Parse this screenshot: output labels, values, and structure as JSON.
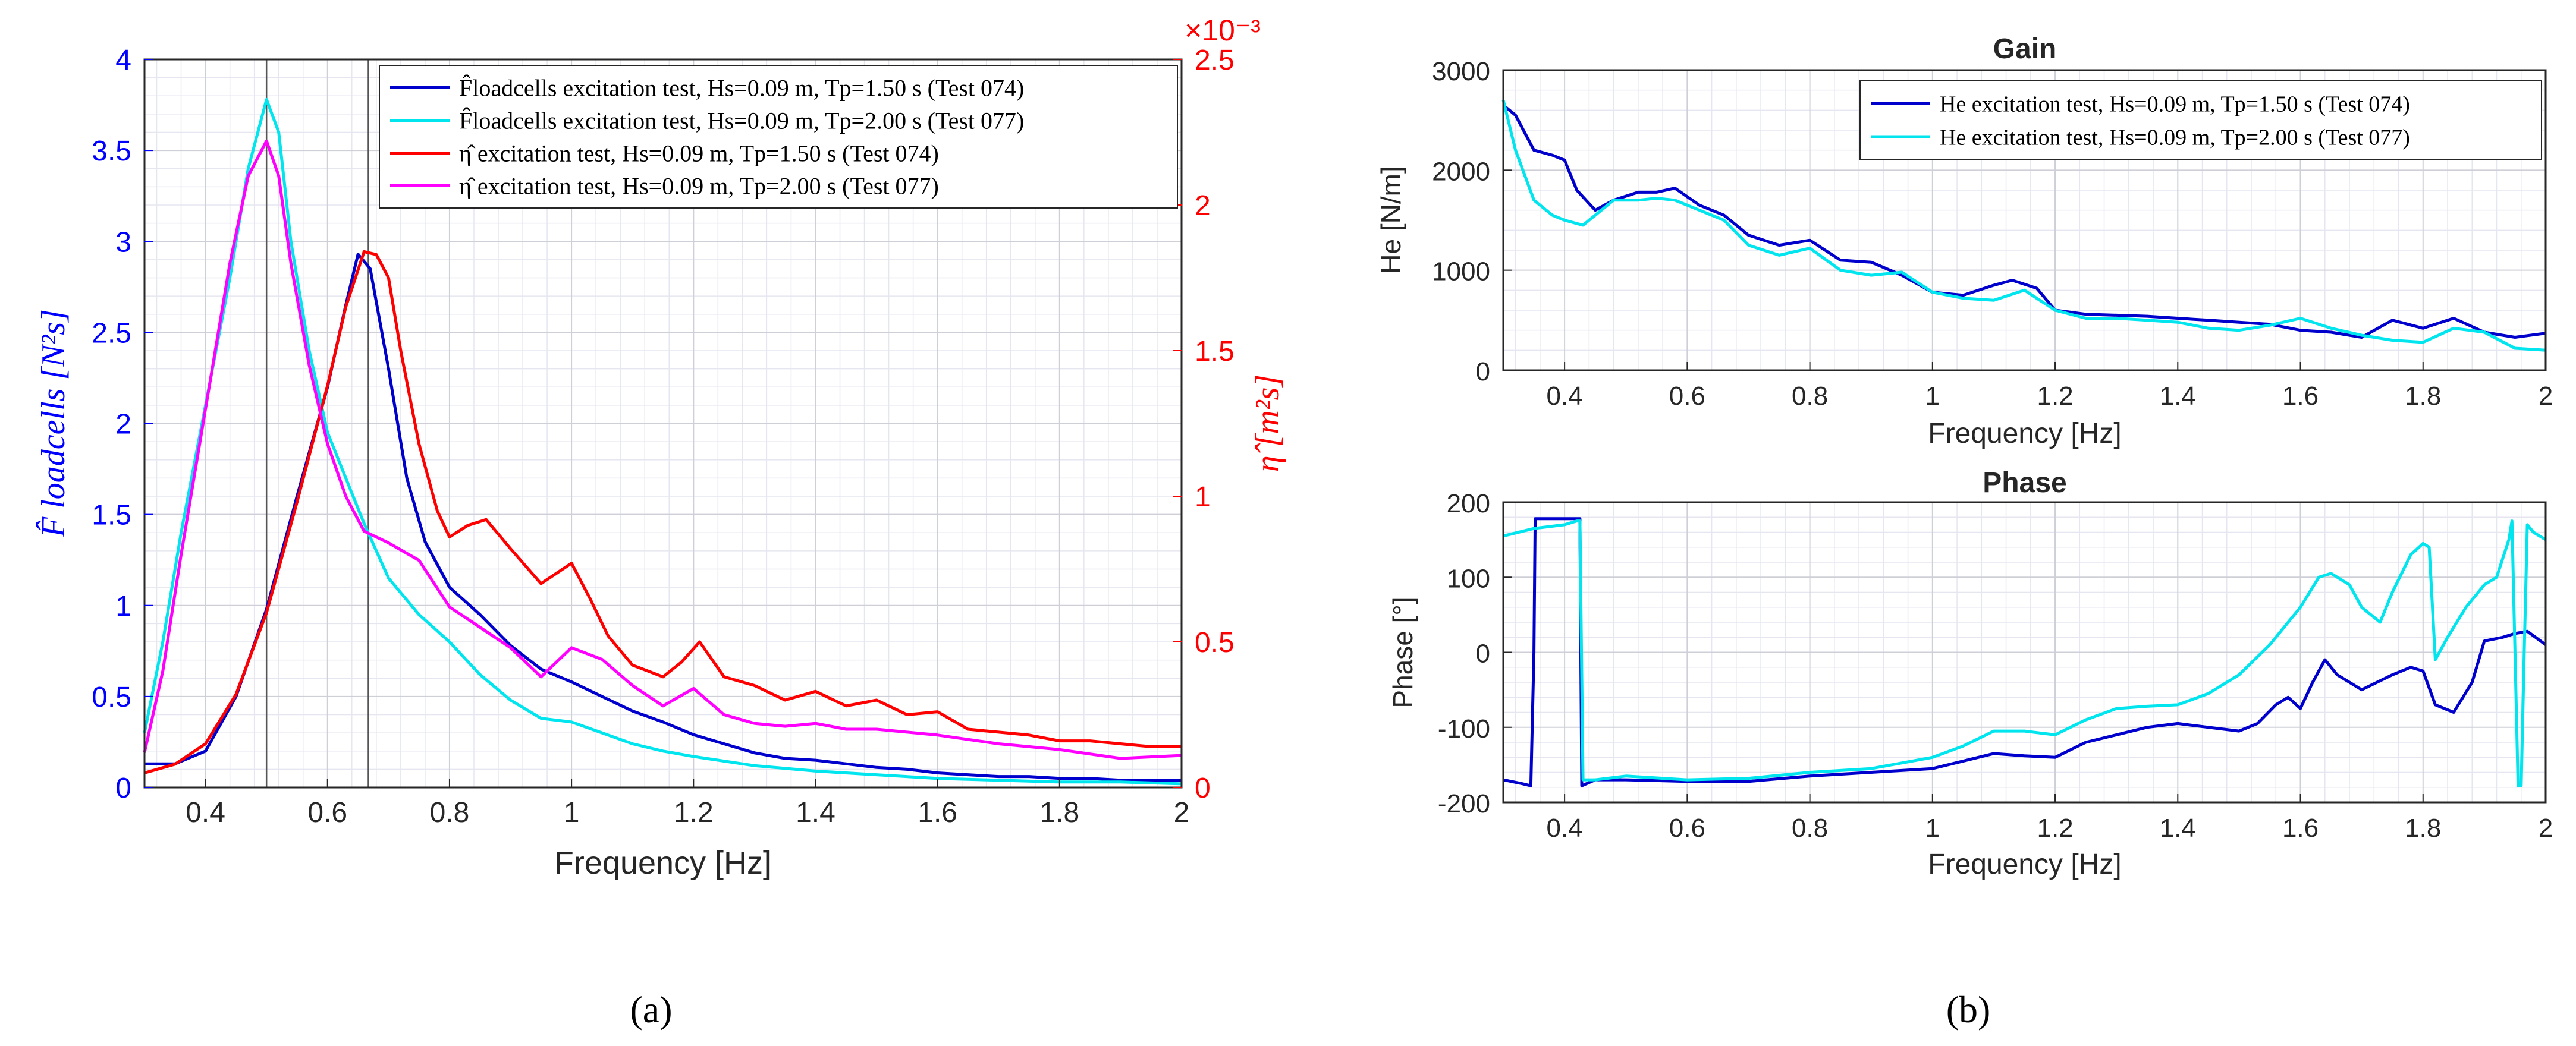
{
  "figure_labels": {
    "a": "(a)",
    "b": "(b)"
  },
  "chart_data": [
    {
      "id": "a",
      "type": "line",
      "title": "",
      "xlabel": "Frequency [Hz]",
      "ylabel_left": "F̂ loadcells [N²s]",
      "ylabel_right": "η̂ [m²s]",
      "xlim": [
        0.3,
        2.0
      ],
      "ylim_left": [
        0,
        4
      ],
      "ylim_right": [
        0,
        2.5
      ],
      "right_axis_exponent": "×10⁻³",
      "grid": true,
      "legend_position": "top-right",
      "x_ticks": [
        "0.4",
        "0.6",
        "0.8",
        "1",
        "1.2",
        "1.4",
        "1.6",
        "1.8",
        "2"
      ],
      "y_left_ticks": [
        "0",
        "0.5",
        "1",
        "1.5",
        "2",
        "2.5",
        "3",
        "3.5",
        "4"
      ],
      "y_right_ticks": [
        "0",
        "0.5",
        "1",
        "1.5",
        "2",
        "2.5"
      ],
      "vertical_lines": [
        0.5,
        0.667
      ],
      "series": [
        {
          "name": "F̂loadcells excitation test, Hs=0.09 m, Tp=1.50 s (Test 074)",
          "color": "#0000cd",
          "axis": "left",
          "x": [
            0.3,
            0.35,
            0.4,
            0.45,
            0.5,
            0.55,
            0.6,
            0.63,
            0.65,
            0.67,
            0.7,
            0.73,
            0.76,
            0.8,
            0.85,
            0.9,
            0.95,
            1.0,
            1.05,
            1.1,
            1.15,
            1.2,
            1.25,
            1.3,
            1.35,
            1.4,
            1.45,
            1.5,
            1.55,
            1.6,
            1.65,
            1.7,
            1.75,
            1.8,
            1.85,
            1.9,
            1.95,
            2.0
          ],
          "y": [
            0.13,
            0.13,
            0.2,
            0.5,
            0.98,
            1.6,
            2.2,
            2.65,
            2.93,
            2.85,
            2.3,
            1.7,
            1.35,
            1.1,
            0.95,
            0.78,
            0.65,
            0.58,
            0.5,
            0.42,
            0.36,
            0.29,
            0.24,
            0.19,
            0.16,
            0.15,
            0.13,
            0.11,
            0.1,
            0.08,
            0.07,
            0.06,
            0.06,
            0.05,
            0.05,
            0.04,
            0.04,
            0.04
          ]
        },
        {
          "name": "F̂loadcells excitation test, Hs=0.09 m, Tp=2.00 s (Test 077)",
          "color": "#00e5ee",
          "axis": "left",
          "x": [
            0.3,
            0.33,
            0.36,
            0.4,
            0.44,
            0.47,
            0.5,
            0.52,
            0.54,
            0.57,
            0.6,
            0.63,
            0.66,
            0.7,
            0.75,
            0.8,
            0.85,
            0.9,
            0.95,
            1.0,
            1.05,
            1.1,
            1.15,
            1.2,
            1.3,
            1.4,
            1.5,
            1.6,
            1.7,
            1.8,
            1.9,
            2.0
          ],
          "y": [
            0.3,
            0.8,
            1.4,
            2.1,
            2.8,
            3.4,
            3.78,
            3.6,
            3.0,
            2.4,
            1.95,
            1.7,
            1.45,
            1.15,
            0.95,
            0.8,
            0.62,
            0.48,
            0.38,
            0.36,
            0.3,
            0.24,
            0.2,
            0.17,
            0.12,
            0.09,
            0.07,
            0.05,
            0.04,
            0.03,
            0.03,
            0.02
          ]
        },
        {
          "name": "η̂ excitation test, Hs=0.09 m, Tp=1.50 s (Test 074)",
          "color": "#ff0000",
          "axis": "right",
          "x": [
            0.3,
            0.35,
            0.4,
            0.45,
            0.5,
            0.55,
            0.6,
            0.63,
            0.66,
            0.68,
            0.7,
            0.72,
            0.75,
            0.78,
            0.8,
            0.83,
            0.86,
            0.9,
            0.95,
            1.0,
            1.03,
            1.06,
            1.1,
            1.15,
            1.18,
            1.21,
            1.25,
            1.3,
            1.35,
            1.4,
            1.45,
            1.5,
            1.55,
            1.6,
            1.65,
            1.7,
            1.75,
            1.8,
            1.85,
            1.9,
            1.95,
            2.0
          ],
          "y": [
            0.05,
            0.08,
            0.15,
            0.32,
            0.6,
            0.98,
            1.38,
            1.65,
            1.84,
            1.83,
            1.75,
            1.5,
            1.18,
            0.95,
            0.86,
            0.9,
            0.92,
            0.82,
            0.7,
            0.77,
            0.65,
            0.52,
            0.42,
            0.38,
            0.43,
            0.5,
            0.38,
            0.35,
            0.3,
            0.33,
            0.28,
            0.3,
            0.25,
            0.26,
            0.2,
            0.19,
            0.18,
            0.16,
            0.16,
            0.15,
            0.14,
            0.14
          ]
        },
        {
          "name": "η̂ excitation test, Hs=0.09 m, Tp=2.00 s (Test 077)",
          "color": "#ff00ff",
          "axis": "right",
          "x": [
            0.3,
            0.33,
            0.36,
            0.4,
            0.44,
            0.47,
            0.5,
            0.52,
            0.54,
            0.57,
            0.6,
            0.63,
            0.66,
            0.7,
            0.75,
            0.8,
            0.85,
            0.9,
            0.95,
            1.0,
            1.05,
            1.1,
            1.15,
            1.2,
            1.25,
            1.3,
            1.35,
            1.4,
            1.45,
            1.5,
            1.6,
            1.7,
            1.8,
            1.9,
            2.0
          ],
          "y": [
            0.12,
            0.4,
            0.8,
            1.3,
            1.8,
            2.1,
            2.22,
            2.1,
            1.8,
            1.45,
            1.18,
            1.0,
            0.88,
            0.84,
            0.78,
            0.62,
            0.55,
            0.48,
            0.38,
            0.48,
            0.44,
            0.35,
            0.28,
            0.34,
            0.25,
            0.22,
            0.21,
            0.22,
            0.2,
            0.2,
            0.18,
            0.15,
            0.13,
            0.1,
            0.11
          ]
        }
      ]
    },
    {
      "id": "b-gain",
      "type": "line",
      "title": "Gain",
      "xlabel": "Frequency [Hz]",
      "ylabel": "He [N/m]",
      "xlim": [
        0.3,
        2.0
      ],
      "ylim": [
        0,
        3000
      ],
      "grid": true,
      "legend_position": "top-right",
      "x_ticks": [
        "0.4",
        "0.6",
        "0.8",
        "1",
        "1.2",
        "1.4",
        "1.6",
        "1.8",
        "2"
      ],
      "y_ticks": [
        "0",
        "1000",
        "2000",
        "3000"
      ],
      "series": [
        {
          "name": "He excitation test, Hs=0.09 m, Tp=1.50 s (Test 074)",
          "color": "#0000cd",
          "x": [
            0.3,
            0.32,
            0.35,
            0.38,
            0.4,
            0.42,
            0.45,
            0.48,
            0.52,
            0.55,
            0.58,
            0.62,
            0.66,
            0.7,
            0.75,
            0.8,
            0.85,
            0.9,
            0.95,
            1.0,
            1.05,
            1.1,
            1.13,
            1.17,
            1.2,
            1.25,
            1.3,
            1.35,
            1.4,
            1.45,
            1.5,
            1.55,
            1.6,
            1.65,
            1.7,
            1.75,
            1.8,
            1.85,
            1.9,
            1.95,
            2.0
          ],
          "y": [
            2650,
            2550,
            2200,
            2150,
            2100,
            1800,
            1600,
            1700,
            1780,
            1780,
            1820,
            1650,
            1550,
            1350,
            1250,
            1300,
            1100,
            1080,
            950,
            780,
            750,
            850,
            900,
            820,
            600,
            560,
            550,
            540,
            520,
            500,
            480,
            460,
            400,
            380,
            330,
            500,
            420,
            520,
            380,
            330,
            370
          ]
        },
        {
          "name": "He excitation test, Hs=0.09 m, Tp=2.00 s (Test 077)",
          "color": "#00e5ee",
          "x": [
            0.3,
            0.32,
            0.35,
            0.38,
            0.4,
            0.43,
            0.45,
            0.48,
            0.52,
            0.55,
            0.58,
            0.62,
            0.66,
            0.7,
            0.75,
            0.8,
            0.85,
            0.9,
            0.95,
            1.0,
            1.05,
            1.1,
            1.15,
            1.2,
            1.25,
            1.3,
            1.35,
            1.4,
            1.45,
            1.5,
            1.55,
            1.6,
            1.65,
            1.7,
            1.75,
            1.8,
            1.85,
            1.9,
            1.95,
            2.0
          ],
          "y": [
            2700,
            2200,
            1700,
            1550,
            1500,
            1450,
            1550,
            1700,
            1700,
            1720,
            1700,
            1600,
            1500,
            1250,
            1150,
            1220,
            1000,
            950,
            980,
            780,
            720,
            700,
            800,
            600,
            520,
            520,
            500,
            480,
            420,
            400,
            450,
            520,
            420,
            350,
            300,
            280,
            420,
            380,
            220,
            200
          ]
        }
      ]
    },
    {
      "id": "b-phase",
      "type": "line",
      "title": "Phase",
      "xlabel": "Frequency [Hz]",
      "ylabel": "Phase [°]",
      "xlim": [
        0.3,
        2.0
      ],
      "ylim": [
        -200,
        200
      ],
      "grid": true,
      "x_ticks": [
        "0.4",
        "0.6",
        "0.8",
        "1",
        "1.2",
        "1.4",
        "1.6",
        "1.8",
        "2"
      ],
      "y_ticks": [
        "-200",
        "-100",
        "0",
        "100",
        "200"
      ],
      "series": [
        {
          "name": "Test 074",
          "color": "#0000cd",
          "x": [
            0.3,
            0.33,
            0.345,
            0.35,
            0.352,
            0.38,
            0.41,
            0.425,
            0.428,
            0.45,
            0.5,
            0.6,
            0.7,
            0.8,
            0.9,
            1.0,
            1.05,
            1.1,
            1.15,
            1.2,
            1.25,
            1.3,
            1.35,
            1.4,
            1.45,
            1.5,
            1.53,
            1.56,
            1.58,
            1.6,
            1.62,
            1.64,
            1.66,
            1.7,
            1.75,
            1.78,
            1.8,
            1.82,
            1.85,
            1.88,
            1.9,
            1.93,
            1.95,
            1.97,
            2.0
          ],
          "y": [
            -170,
            -175,
            -178,
            0,
            178,
            178,
            178,
            178,
            -178,
            -170,
            -170,
            -172,
            -172,
            -165,
            -160,
            -155,
            -145,
            -135,
            -138,
            -140,
            -120,
            -110,
            -100,
            -95,
            -100,
            -105,
            -95,
            -70,
            -60,
            -75,
            -40,
            -10,
            -30,
            -50,
            -30,
            -20,
            -25,
            -70,
            -80,
            -40,
            15,
            20,
            25,
            28,
            10
          ]
        },
        {
          "name": "Test 077",
          "color": "#00e5ee",
          "x": [
            0.3,
            0.35,
            0.4,
            0.42,
            0.425,
            0.43,
            0.45,
            0.5,
            0.6,
            0.7,
            0.8,
            0.9,
            1.0,
            1.05,
            1.1,
            1.15,
            1.2,
            1.25,
            1.3,
            1.35,
            1.4,
            1.45,
            1.5,
            1.55,
            1.6,
            1.63,
            1.65,
            1.68,
            1.7,
            1.73,
            1.75,
            1.78,
            1.8,
            1.81,
            1.82,
            1.84,
            1.87,
            1.9,
            1.92,
            1.94,
            1.945,
            1.95,
            1.955,
            1.96,
            1.965,
            1.97,
            1.98,
            2.0
          ],
          "y": [
            155,
            165,
            170,
            175,
            175,
            -170,
            -170,
            -165,
            -170,
            -168,
            -160,
            -155,
            -140,
            -125,
            -105,
            -105,
            -110,
            -90,
            -75,
            -72,
            -70,
            -55,
            -30,
            10,
            60,
            100,
            105,
            90,
            60,
            40,
            80,
            130,
            145,
            140,
            -10,
            20,
            60,
            90,
            100,
            150,
            175,
            0,
            -178,
            -178,
            0,
            170,
            160,
            150
          ]
        }
      ]
    }
  ]
}
